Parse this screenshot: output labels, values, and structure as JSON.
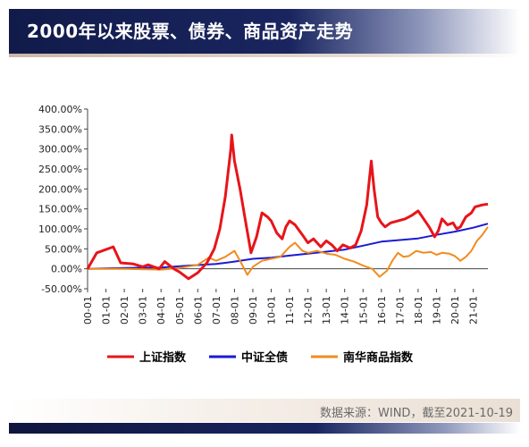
{
  "header": {
    "title": "2000年以来股票、债券、商品资产走势"
  },
  "footer": {
    "source": "数据来源：WIND，截至2021-10-19"
  },
  "colors": {
    "shanghai": "#e8141a",
    "bond": "#1a1ad4",
    "commodity": "#f08c1e",
    "title_bg": "#111b4a"
  },
  "chart_data": {
    "type": "line",
    "title": "",
    "xlabel": "",
    "ylabel": "",
    "x_start": "2000-01",
    "x_end": "2021-10",
    "ylim": [
      -50,
      400
    ],
    "y_ticks": [
      "400.00%",
      "350.00%",
      "300.00%",
      "250.00%",
      "200.00%",
      "150.00%",
      "100.00%",
      "50.00%",
      "0.00%",
      "-50.00%"
    ],
    "y_tick_values": [
      400,
      350,
      300,
      250,
      200,
      150,
      100,
      50,
      0,
      -50
    ],
    "x_ticks": [
      "00-01",
      "01-01",
      "02-01",
      "03-01",
      "04-01",
      "05-01",
      "06-01",
      "07-01",
      "08-01",
      "09-01",
      "10-01",
      "11-01",
      "12-01",
      "13-01",
      "14-01",
      "15-01",
      "16-01",
      "17-01",
      "18-01",
      "19-01",
      "20-01",
      "21-01"
    ],
    "legend_position": "bottom",
    "series": [
      {
        "name": "上证指数",
        "color": "#e8141a",
        "points": [
          [
            2000.0,
            0
          ],
          [
            2000.5,
            40
          ],
          [
            2001.4,
            55
          ],
          [
            2001.8,
            15
          ],
          [
            2002.5,
            12
          ],
          [
            2003.0,
            5
          ],
          [
            2003.3,
            10
          ],
          [
            2003.9,
            0
          ],
          [
            2004.2,
            18
          ],
          [
            2004.7,
            0
          ],
          [
            2005.0,
            -8
          ],
          [
            2005.5,
            -25
          ],
          [
            2006.0,
            -10
          ],
          [
            2006.5,
            15
          ],
          [
            2006.9,
            50
          ],
          [
            2007.2,
            100
          ],
          [
            2007.5,
            180
          ],
          [
            2007.8,
            300
          ],
          [
            2007.85,
            335
          ],
          [
            2008.0,
            270
          ],
          [
            2008.3,
            200
          ],
          [
            2008.6,
            120
          ],
          [
            2008.9,
            40
          ],
          [
            2009.2,
            80
          ],
          [
            2009.5,
            140
          ],
          [
            2009.8,
            130
          ],
          [
            2010.0,
            120
          ],
          [
            2010.3,
            90
          ],
          [
            2010.6,
            75
          ],
          [
            2010.8,
            105
          ],
          [
            2011.0,
            120
          ],
          [
            2011.3,
            110
          ],
          [
            2011.7,
            85
          ],
          [
            2012.0,
            65
          ],
          [
            2012.3,
            75
          ],
          [
            2012.7,
            55
          ],
          [
            2013.0,
            70
          ],
          [
            2013.3,
            60
          ],
          [
            2013.6,
            45
          ],
          [
            2013.9,
            60
          ],
          [
            2014.3,
            52
          ],
          [
            2014.6,
            60
          ],
          [
            2014.9,
            95
          ],
          [
            2015.2,
            160
          ],
          [
            2015.45,
            270
          ],
          [
            2015.6,
            200
          ],
          [
            2015.8,
            130
          ],
          [
            2016.0,
            115
          ],
          [
            2016.2,
            105
          ],
          [
            2016.5,
            115
          ],
          [
            2016.9,
            120
          ],
          [
            2017.3,
            125
          ],
          [
            2017.7,
            135
          ],
          [
            2018.0,
            145
          ],
          [
            2018.3,
            125
          ],
          [
            2018.6,
            105
          ],
          [
            2018.9,
            80
          ],
          [
            2019.1,
            95
          ],
          [
            2019.3,
            125
          ],
          [
            2019.6,
            110
          ],
          [
            2019.9,
            115
          ],
          [
            2020.1,
            100
          ],
          [
            2020.3,
            105
          ],
          [
            2020.6,
            130
          ],
          [
            2020.9,
            140
          ],
          [
            2021.1,
            155
          ],
          [
            2021.5,
            160
          ],
          [
            2021.8,
            162
          ]
        ]
      },
      {
        "name": "中证全债",
        "color": "#1a1ad4",
        "points": [
          [
            2000.0,
            0
          ],
          [
            2002.0,
            2
          ],
          [
            2004.0,
            3
          ],
          [
            2005.5,
            8
          ],
          [
            2007.0,
            12
          ],
          [
            2008.0,
            18
          ],
          [
            2009.0,
            25
          ],
          [
            2010.0,
            28
          ],
          [
            2011.0,
            33
          ],
          [
            2012.0,
            38
          ],
          [
            2013.0,
            43
          ],
          [
            2014.0,
            48
          ],
          [
            2015.0,
            58
          ],
          [
            2016.0,
            68
          ],
          [
            2017.0,
            72
          ],
          [
            2018.0,
            76
          ],
          [
            2019.0,
            85
          ],
          [
            2020.0,
            93
          ],
          [
            2021.0,
            103
          ],
          [
            2021.8,
            113
          ]
        ]
      },
      {
        "name": "南华商品指数",
        "color": "#f08c1e",
        "points": [
          [
            2000.0,
            0
          ],
          [
            2002.0,
            0
          ],
          [
            2004.0,
            -2
          ],
          [
            2005.0,
            2
          ],
          [
            2006.0,
            10
          ],
          [
            2006.6,
            28
          ],
          [
            2007.0,
            20
          ],
          [
            2007.5,
            30
          ],
          [
            2008.0,
            45
          ],
          [
            2008.3,
            20
          ],
          [
            2008.7,
            -15
          ],
          [
            2009.0,
            5
          ],
          [
            2009.5,
            20
          ],
          [
            2010.0,
            25
          ],
          [
            2010.5,
            30
          ],
          [
            2011.0,
            55
          ],
          [
            2011.3,
            65
          ],
          [
            2011.7,
            45
          ],
          [
            2012.0,
            40
          ],
          [
            2012.5,
            45
          ],
          [
            2013.0,
            38
          ],
          [
            2013.5,
            35
          ],
          [
            2014.0,
            25
          ],
          [
            2014.5,
            18
          ],
          [
            2015.0,
            8
          ],
          [
            2015.5,
            0
          ],
          [
            2015.9,
            -20
          ],
          [
            2016.3,
            -5
          ],
          [
            2016.6,
            20
          ],
          [
            2016.9,
            40
          ],
          [
            2017.2,
            30
          ],
          [
            2017.5,
            32
          ],
          [
            2017.9,
            45
          ],
          [
            2018.3,
            40
          ],
          [
            2018.7,
            42
          ],
          [
            2019.0,
            35
          ],
          [
            2019.3,
            40
          ],
          [
            2019.7,
            38
          ],
          [
            2020.0,
            32
          ],
          [
            2020.3,
            20
          ],
          [
            2020.6,
            30
          ],
          [
            2020.9,
            45
          ],
          [
            2021.2,
            70
          ],
          [
            2021.5,
            85
          ],
          [
            2021.8,
            105
          ]
        ]
      }
    ]
  }
}
